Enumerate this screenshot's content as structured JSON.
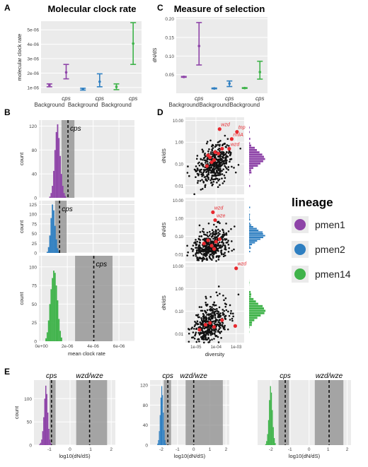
{
  "colors": {
    "pmen1": "#8e44a8",
    "pmen2": "#2f7fc1",
    "pmen14": "#3fb34a",
    "panel_bg": "#ebebeb",
    "grid": "#ffffff",
    "shade": "#8c8c8c",
    "point": "#111111",
    "highlight": "#e8292f",
    "highlight_text": "#e8292f"
  },
  "panel_letters": {
    "a": "A",
    "b": "B",
    "c": "C",
    "d": "D",
    "e": "E"
  },
  "titles": {
    "a": "Molecular clock rate",
    "c": "Measure of selection"
  },
  "legend": {
    "title": "lineage",
    "items": [
      {
        "key": "pmen1",
        "label": "pmen1"
      },
      {
        "key": "pmen2",
        "label": "pmen2"
      },
      {
        "key": "pmen14",
        "label": "pmen14"
      }
    ]
  },
  "chart_data": [
    {
      "id": "A",
      "type": "errorbar",
      "title": "Molecular clock rate",
      "ylabel": "molecular clock rate",
      "categories": [
        "Background",
        "cps",
        "Background",
        "cps",
        "Background",
        "cps"
      ],
      "category_row": [
        "lower",
        "upper",
        "lower",
        "upper",
        "lower",
        "upper"
      ],
      "lineage": [
        "pmen1",
        "pmen1",
        "pmen2",
        "pmen2",
        "pmen14",
        "pmen14"
      ],
      "values": [
        1.15e-06,
        2.05e-06,
        8.8e-07,
        1.4e-06,
        1.05e-06,
        4.05e-06
      ],
      "lower": [
        1.05e-06,
        1.6e-06,
        8.2e-07,
        1.05e-06,
        8.5e-07,
        2.6e-06
      ],
      "upper": [
        1.25e-06,
        2.6e-06,
        9.5e-07,
        1.95e-06,
        1.25e-06,
        5.5e-06
      ],
      "yticks": [
        "1e-06",
        "2e-06",
        "3e-06",
        "4e-06",
        "5e-06"
      ],
      "ylim": [
        6e-07,
        5.6e-06
      ]
    },
    {
      "id": "C",
      "type": "errorbar",
      "title": "Measure of selection",
      "ylabel": "dN/dS",
      "categories": [
        "Background",
        "cps",
        "Background",
        "cps",
        "Background",
        "cps"
      ],
      "category_row": [
        "lower",
        "upper",
        "lower",
        "upper",
        "lower",
        "upper"
      ],
      "lineage": [
        "pmen1",
        "pmen1",
        "pmen2",
        "pmen2",
        "pmen14",
        "pmen14"
      ],
      "values": [
        0.044,
        0.127,
        0.013,
        0.026,
        0.014,
        0.057
      ],
      "lower": [
        0.043,
        0.076,
        0.012,
        0.018,
        0.013,
        0.038
      ],
      "upper": [
        0.045,
        0.19,
        0.014,
        0.033,
        0.015,
        0.086
      ],
      "yticks": [
        "0.05",
        "0.10",
        "0.15",
        "0.20"
      ],
      "ytick_values": [
        0.05,
        0.1,
        0.15,
        0.2
      ],
      "ylim": [
        0.0,
        0.205
      ]
    },
    {
      "id": "B",
      "type": "histogram",
      "xlabel": "mean clock rate",
      "ylabel": "count",
      "xticks": [
        "0e+00",
        "2e-06",
        "4e-06",
        "6e-06"
      ],
      "xtick_values": [
        0,
        2e-06,
        4e-06,
        6e-06
      ],
      "xlim": [
        -2e-07,
        7.2e-06
      ],
      "panels": [
        {
          "lineage": "pmen1",
          "yticks": [
            "0",
            "40",
            "80",
            "120"
          ],
          "ytick_values": [
            0,
            40,
            80,
            120
          ],
          "ymax": 130,
          "bin_width": 1e-07,
          "bin_start": 6e-07,
          "counts": [
            2,
            8,
            20,
            45,
            80,
            110,
            123,
            100,
            70,
            40,
            20,
            8,
            3
          ],
          "shade": [
            1.55e-06,
            2.55e-06
          ],
          "line": 2.05e-06,
          "label": "cps"
        },
        {
          "lineage": "pmen2",
          "yticks": [
            "0",
            "25",
            "50",
            "75",
            "100",
            "125"
          ],
          "ytick_values": [
            0,
            25,
            50,
            75,
            100,
            125
          ],
          "ymax": 135,
          "bin_width": 1e-07,
          "bin_start": 4e-07,
          "counts": [
            3,
            15,
            45,
            90,
            125,
            110,
            70,
            35,
            12,
            4
          ],
          "shade": [
            1.05e-06,
            1.95e-06
          ],
          "line": 1.4e-06,
          "label": "cps"
        },
        {
          "lineage": "pmen14",
          "yticks": [
            "0",
            "25",
            "50",
            "75",
            "100"
          ],
          "ytick_values": [
            0,
            25,
            50,
            75,
            100
          ],
          "ymax": 115,
          "bin_width": 1e-07,
          "bin_start": 3e-07,
          "counts": [
            4,
            12,
            28,
            50,
            70,
            85,
            95,
            92,
            75,
            55,
            30,
            14,
            5
          ],
          "shade": [
            2.6e-06,
            5.5e-06
          ],
          "line": 4.05e-06,
          "label": "cps"
        }
      ]
    },
    {
      "id": "D",
      "type": "scatter",
      "xlabel": "diversity",
      "ylabel": "dN/dS",
      "xscale": "log",
      "yscale": "log",
      "xticks": [
        "1e-05",
        "1e-04",
        "1e-03"
      ],
      "xtick_values": [
        1e-05,
        0.0001,
        0.001
      ],
      "yticks": [
        "0.01",
        "0.10",
        "1.00",
        "10.00"
      ],
      "ytick_values": [
        0.01,
        0.1,
        1,
        10
      ],
      "xlim": [
        3e-06,
        0.0025
      ],
      "ylim": [
        0.004,
        14
      ],
      "panels": [
        {
          "lineage": "pmen1",
          "highlight": [
            [
              5e-05,
              0.2
            ],
            [
              3.5e-05,
              0.08
            ],
            [
              8e-05,
              0.15
            ],
            [
              0.00013,
              0.3
            ],
            [
              6e-05,
              0.12
            ],
            [
              0.0002,
              0.5
            ],
            [
              9e-05,
              0.35
            ],
            [
              4e-05,
              0.25
            ]
          ],
          "labeled": [
            {
              "label": "wzd",
              "x": 0.00015,
              "y": 4
            },
            {
              "label": "tnp",
              "x": 0.0011,
              "y": 3
            },
            {
              "label": "rmlA",
              "x": 0.0006,
              "y": 1.4
            },
            {
              "label": "wzd",
              "x": 0.00045,
              "y": 0.5
            }
          ]
        },
        {
          "lineage": "pmen2",
          "highlight": [
            [
              4e-05,
              0.06
            ],
            [
              6e-05,
              0.03
            ],
            [
              0.0001,
              0.05
            ],
            [
              2.5e-05,
              0.04
            ],
            [
              8e-05,
              0.02
            ],
            [
              0.00015,
              0.07
            ]
          ],
          "labeled": [
            {
              "label": "wzd",
              "x": 7e-05,
              "y": 2.2
            },
            {
              "label": "wze",
              "x": 9e-05,
              "y": 0.8
            }
          ]
        },
        {
          "lineage": "pmen14",
          "highlight": [
            [
              1.5e-05,
              0.015
            ],
            [
              5e-05,
              0.03
            ],
            [
              8e-05,
              0.02
            ],
            [
              0.0002,
              0.04
            ],
            [
              0.0009,
              0.022
            ],
            [
              3e-05,
              0.025
            ]
          ],
          "labeled": [
            {
              "label": "wzd",
              "x": 0.001,
              "y": 8
            }
          ]
        }
      ]
    },
    {
      "id": "E",
      "type": "histogram",
      "xlabel": "log10(dN/dS)",
      "ylabel": "count",
      "xticks": [
        "-2",
        "-1",
        "0",
        "1",
        "2"
      ],
      "xtick_values": [
        -2,
        -1,
        0,
        1,
        2
      ],
      "shade_labels": [
        "cps",
        "wzd/wze"
      ],
      "panels": [
        {
          "lineage": "pmen1",
          "xlim": [
            -1.75,
            2.2
          ],
          "yticks": [
            "0",
            "50",
            "100"
          ],
          "ytick_values": [
            0,
            50,
            100
          ],
          "ymax": 140,
          "bin_width": 0.05,
          "bin_start": -1.5,
          "counts": [
            2,
            5,
            12,
            30,
            60,
            100,
            128,
            110,
            70,
            35,
            12,
            4
          ],
          "shade1": [
            -1.0,
            -0.7
          ],
          "line1": -0.9,
          "shade2": [
            0.3,
            1.8
          ],
          "line2": 0.95
        },
        {
          "lineage": "pmen2",
          "xlim": [
            -2.7,
            2.2
          ],
          "yticks": [
            "0",
            "40",
            "80",
            "120"
          ],
          "ytick_values": [
            0,
            40,
            80,
            120
          ],
          "ymax": 130,
          "bin_width": 0.05,
          "bin_start": -2.25,
          "counts": [
            3,
            10,
            28,
            60,
            95,
            118,
            100,
            65,
            30,
            10,
            3
          ],
          "shade1": [
            -1.85,
            -1.4
          ],
          "line1": -1.6,
          "shade2": [
            -0.5,
            1.8
          ],
          "line2": 0.0
        },
        {
          "lineage": "pmen14",
          "xlim": [
            -2.7,
            2.2
          ],
          "yticks": [],
          "ytick_values": [],
          "ymax": 130,
          "bin_width": 0.05,
          "bin_start": -2.3,
          "counts": [
            2,
            8,
            22,
            50,
            90,
            118,
            105,
            70,
            36,
            14,
            4
          ],
          "shade1": [
            -1.6,
            -1.05
          ],
          "line1": -1.25,
          "shade2": [
            0.3,
            1.8
          ],
          "line2": 1.05
        }
      ]
    }
  ]
}
